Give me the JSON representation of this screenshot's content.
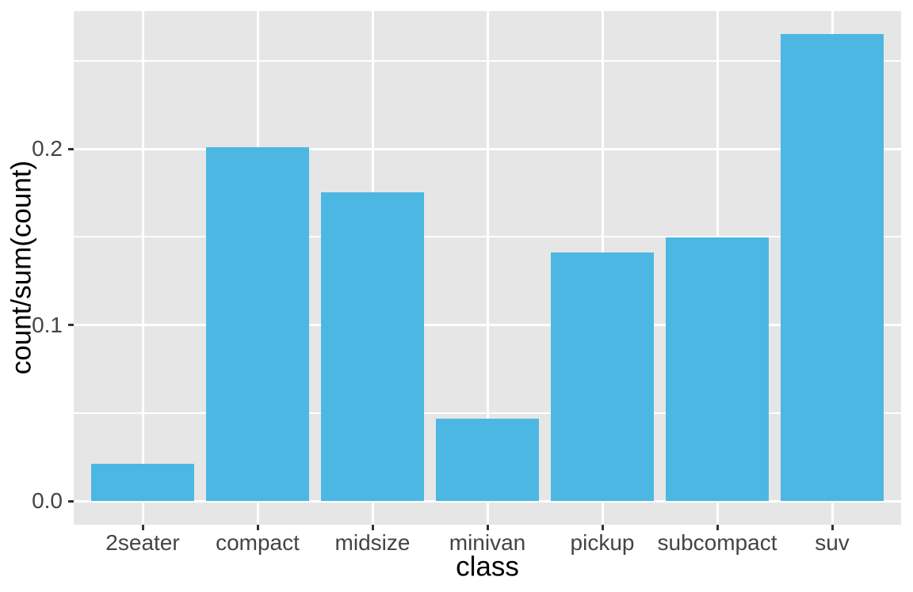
{
  "chart_data": {
    "type": "bar",
    "title": "",
    "xlabel": "class",
    "ylabel": "count/sum(count)",
    "categories": [
      "2seater",
      "compact",
      "midsize",
      "minivan",
      "pickup",
      "subcompact",
      "suv"
    ],
    "values": [
      0.0214,
      0.2009,
      0.1752,
      0.047,
      0.141,
      0.1496,
      0.265
    ],
    "ylim": [
      -0.0133,
      0.2782
    ],
    "yticks_major": [
      0.0,
      0.1,
      0.2
    ],
    "ytick_labels": [
      "0.0",
      "0.1",
      "0.2"
    ],
    "yticks_minor": [
      0.05,
      0.15,
      0.25
    ],
    "grid": "on",
    "legend": "none",
    "theme": "ggplot-gray",
    "colors": {
      "bar_fill": "#4DB7E4",
      "panel_background": "#E6E6E6",
      "grid": "#FFFFFF",
      "tick_mark": "#333333",
      "tick_label": "#444444",
      "axis_title": "#000000",
      "figure_background": "#FFFFFF"
    }
  }
}
